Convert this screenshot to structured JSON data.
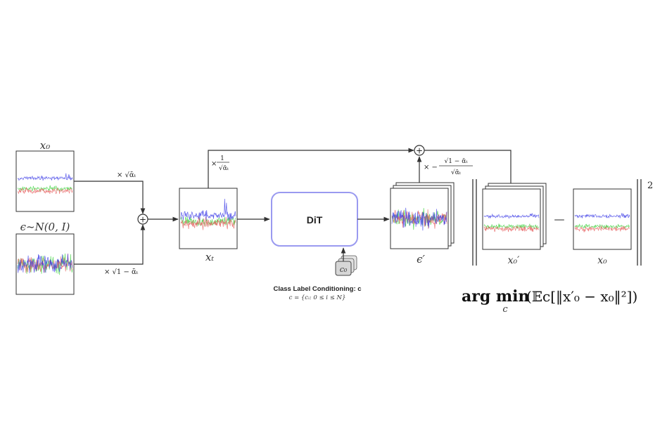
{
  "labels": {
    "x0_top": "x₀",
    "eps_dist": "ϵ~N(0, I)",
    "xt": "xₜ",
    "eps_prime": "ϵ′",
    "x0_prime": "x₀′",
    "x0_right": "x₀",
    "dit": "DiT",
    "c0_token": "c₀",
    "cond_title": "Class Label Conditioning: c",
    "cond_def": "c = {cᵢ: 0 ≤ i ≤ N}",
    "scale_sqrt_alpha": "× √ᾱₜ",
    "scale_sqrt_one_minus": "× √1 − ᾱₜ",
    "scale_inv_num": "1",
    "scale_inv_den": "√ᾱₜ",
    "scale_inv_prefix": "×",
    "scale_neg_prefix": "× −",
    "scale_neg_num": "√1 − ᾱₜ",
    "scale_neg_den": "√ᾱₜ",
    "plus": "+",
    "minus": "—",
    "norm_exp": "2",
    "objective_argmin": "arg min",
    "objective_sub": "c",
    "objective_expr": "(𝔼c[‖x′₀ − x₀‖²])"
  },
  "colors": {
    "signal_blue": "#3a3ae6",
    "signal_red": "#e65a5a",
    "signal_green": "#3ad23a",
    "dit_border": "#9a9af0",
    "line": "#333333"
  }
}
